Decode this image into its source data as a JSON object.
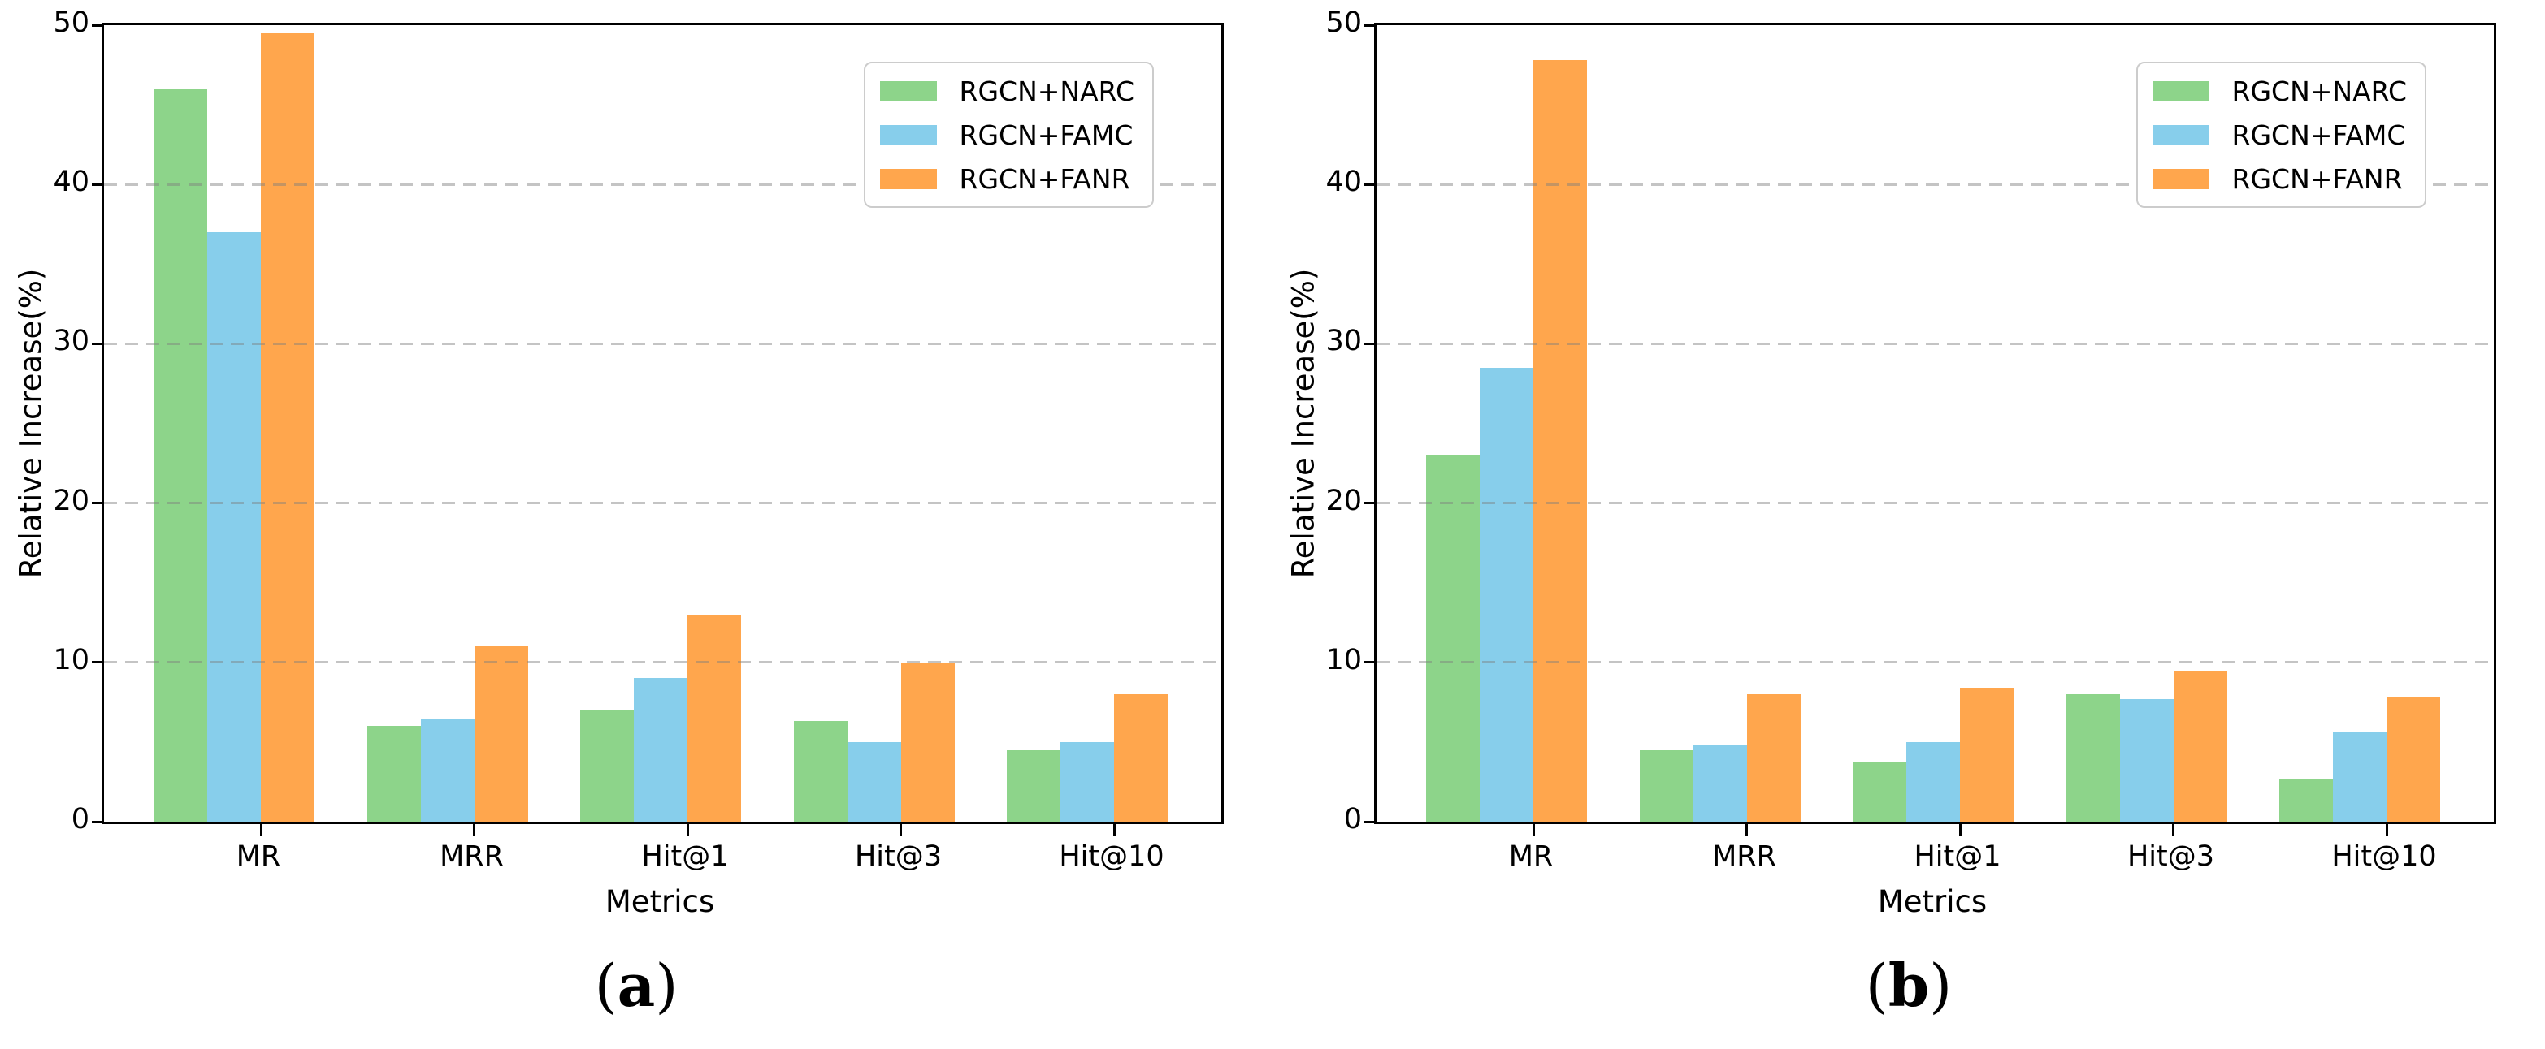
{
  "figure": {
    "background": "#ffffff",
    "panels": [
      {
        "caption_open": "(",
        "caption_letter": "a",
        "caption_close": ")"
      },
      {
        "caption_open": "(",
        "caption_letter": "b",
        "caption_close": ")"
      }
    ]
  },
  "chart_data": [
    {
      "type": "bar",
      "title": "",
      "xlabel": "Metrics",
      "ylabel": "Relative Increase(%)",
      "categories": [
        "MR",
        "MRR",
        "Hit@1",
        "Hit@3",
        "Hit@10"
      ],
      "series": [
        {
          "name": "RGCN+NARC",
          "color": "#8dd48a",
          "values": [
            46,
            6,
            7,
            6.3,
            4.5
          ]
        },
        {
          "name": "RGCN+FAMC",
          "color": "#87ceeb",
          "values": [
            37,
            6.5,
            9,
            5,
            5
          ]
        },
        {
          "name": "RGCN+FANR",
          "color": "#ffa64d",
          "values": [
            49.5,
            11,
            13,
            10,
            8
          ]
        }
      ],
      "ylim": [
        0,
        50
      ],
      "yticks": [
        0,
        10,
        20,
        30,
        40,
        50
      ],
      "grid": "dashed-horizontal",
      "legend_position": "upper-right"
    },
    {
      "type": "bar",
      "title": "",
      "xlabel": "Metrics",
      "ylabel": "Relative Increase(%)",
      "categories": [
        "MR",
        "MRR",
        "Hit@1",
        "Hit@3",
        "Hit@10"
      ],
      "series": [
        {
          "name": "RGCN+NARC",
          "color": "#8dd48a",
          "values": [
            23,
            4.5,
            3.7,
            8,
            2.7
          ]
        },
        {
          "name": "RGCN+FAMC",
          "color": "#87ceeb",
          "values": [
            28.5,
            4.85,
            5,
            7.7,
            5.6
          ]
        },
        {
          "name": "RGCN+FANR",
          "color": "#ffa64d",
          "values": [
            47.8,
            8,
            8.4,
            9.5,
            7.8
          ]
        }
      ],
      "ylim": [
        0,
        50
      ],
      "yticks": [
        0,
        10,
        20,
        30,
        40,
        50
      ],
      "grid": "dashed-horizontal",
      "legend_position": "upper-right"
    }
  ]
}
